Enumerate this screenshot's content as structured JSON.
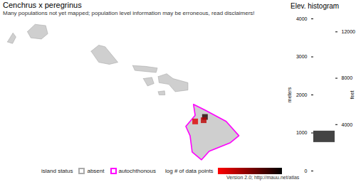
{
  "chart_data": [
    {
      "type": "map",
      "title": "Cenchrus x peregrinus",
      "subtitle": "Many populations not yet mapped; population level information may be erroneous, read disclaimers!",
      "island_status": [
        "absent",
        "absent",
        "absent",
        "absent",
        "absent",
        "absent",
        "absent",
        "autochthonous"
      ],
      "status_legend": {
        "title": "island status",
        "entries": [
          {
            "name": "absent",
            "color": "#aaaaaa"
          },
          {
            "name": "autochthonous",
            "color": "#ff00ff"
          }
        ]
      },
      "points": {
        "lon": [
          -155.6,
          -155.63,
          -155.83
        ],
        "lat": [
          19.96,
          19.88,
          19.85
        ],
        "values": [
          2.0,
          0.6,
          0.3
        ]
      },
      "color_legend": {
        "title": "log # of data points",
        "colors": [
          "#ff0000",
          "#000000"
        ],
        "range": [
          0,
          2.3
        ]
      },
      "caption": "Version 2.0; http://mauu.net/atlas"
    },
    {
      "type": "histogram",
      "title": "Elev. histogram",
      "bins": [
        750,
        1050
      ],
      "counts": [
        1
      ],
      "color": "#444444",
      "ylabel": "meters",
      "ylim": [
        0,
        4000
      ],
      "yticks": [
        0,
        1000,
        2000,
        3000,
        4000
      ],
      "y2label": "feet",
      "y2ticks": [
        4000,
        8000,
        12000
      ]
    }
  ]
}
